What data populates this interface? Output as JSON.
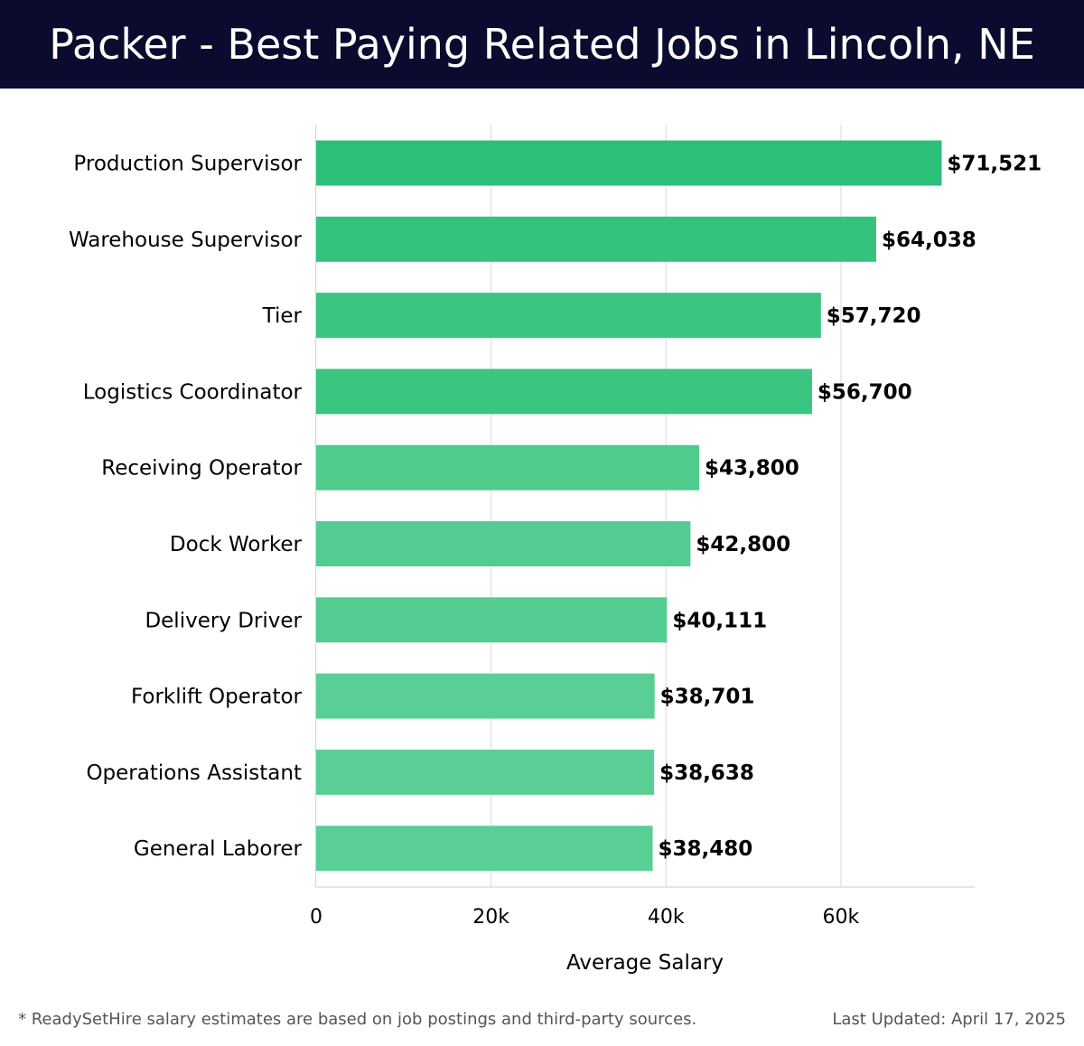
{
  "header": {
    "title": "Packer - Best Paying Related Jobs in Lincoln, NE"
  },
  "colors": {
    "header_background": "#0a0b2e",
    "bar_colors": [
      "#2bbf77",
      "#34c27c",
      "#3ac581",
      "#3ac581",
      "#4fcb8e",
      "#52cc90",
      "#55cd92",
      "#5acf95",
      "#5acf95",
      "#5acf95"
    ],
    "gridline": "#e0e0e0",
    "text": "#000000"
  },
  "chart_data": {
    "type": "bar",
    "orientation": "horizontal",
    "categories": [
      "Production Supervisor",
      "Warehouse Supervisor",
      "Tier",
      "Logistics Coordinator",
      "Receiving Operator",
      "Dock Worker",
      "Delivery Driver",
      "Forklift Operator",
      "Operations Assistant",
      "General Laborer"
    ],
    "values": [
      71521,
      64038,
      57720,
      56700,
      43800,
      42800,
      40111,
      38701,
      38638,
      38480
    ],
    "value_labels": [
      "$71,521",
      "$64,038",
      "$57,720",
      "$56,700",
      "$43,800",
      "$42,800",
      "$40,111",
      "$38,701",
      "$38,638",
      "$38,480"
    ],
    "xlabel": "Average Salary",
    "ylabel": "",
    "xlim": [
      0,
      75300
    ],
    "xticks": [
      0,
      20000,
      40000,
      60000
    ],
    "xtick_labels": [
      "0",
      "20k",
      "40k",
      "60k"
    ],
    "grid": true
  },
  "footer": {
    "note": "* ReadySetHire salary estimates are based on job postings and third-party sources.",
    "updated": "Last Updated: April 17, 2025"
  }
}
